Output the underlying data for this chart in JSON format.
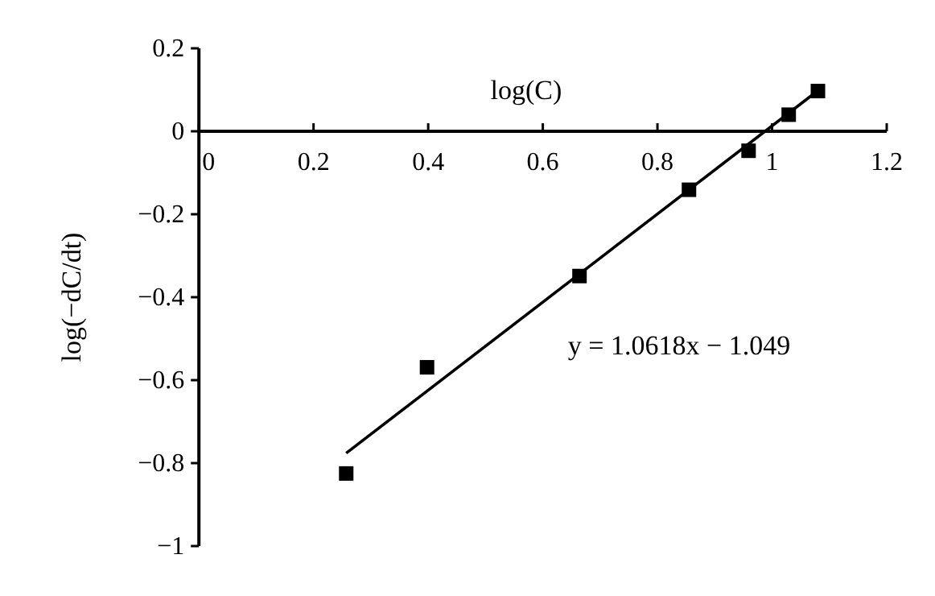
{
  "chart_data": {
    "type": "scatter",
    "xlabel": "log(C)",
    "ylabel": "log(−dC/dt)",
    "grid": false,
    "xlim": [
      0,
      1.2
    ],
    "xticks": [
      0,
      0.2,
      0.4,
      0.6,
      0.8,
      1,
      1.2
    ],
    "ylim": [
      -1,
      0.2
    ],
    "yticks": [
      0.2,
      0,
      {
        "value": -0.2,
        "label": "−0.2"
      },
      {
        "value": -0.4,
        "label": "−0.4"
      },
      {
        "value": -0.6,
        "label": "−0.6"
      },
      {
        "value": -0.8,
        "label": "−0.8"
      },
      {
        "value": -1,
        "label": "−1"
      }
    ],
    "series": [
      {
        "marker": "square",
        "color": "#000000",
        "x": [
          0.257,
          0.398,
          0.664,
          0.855,
          0.959,
          1.029,
          1.08
        ],
        "values": [
          -0.825,
          -0.569,
          -0.349,
          -0.141,
          -0.047,
          0.04,
          0.097
        ]
      },
      {
        "type": "line",
        "color": "#000000",
        "x": [
          0.257,
          1.08
        ],
        "values": [
          -0.776,
          0.098
        ]
      }
    ],
    "annotations": [
      "y = 1.0618x − 1.049"
    ]
  }
}
